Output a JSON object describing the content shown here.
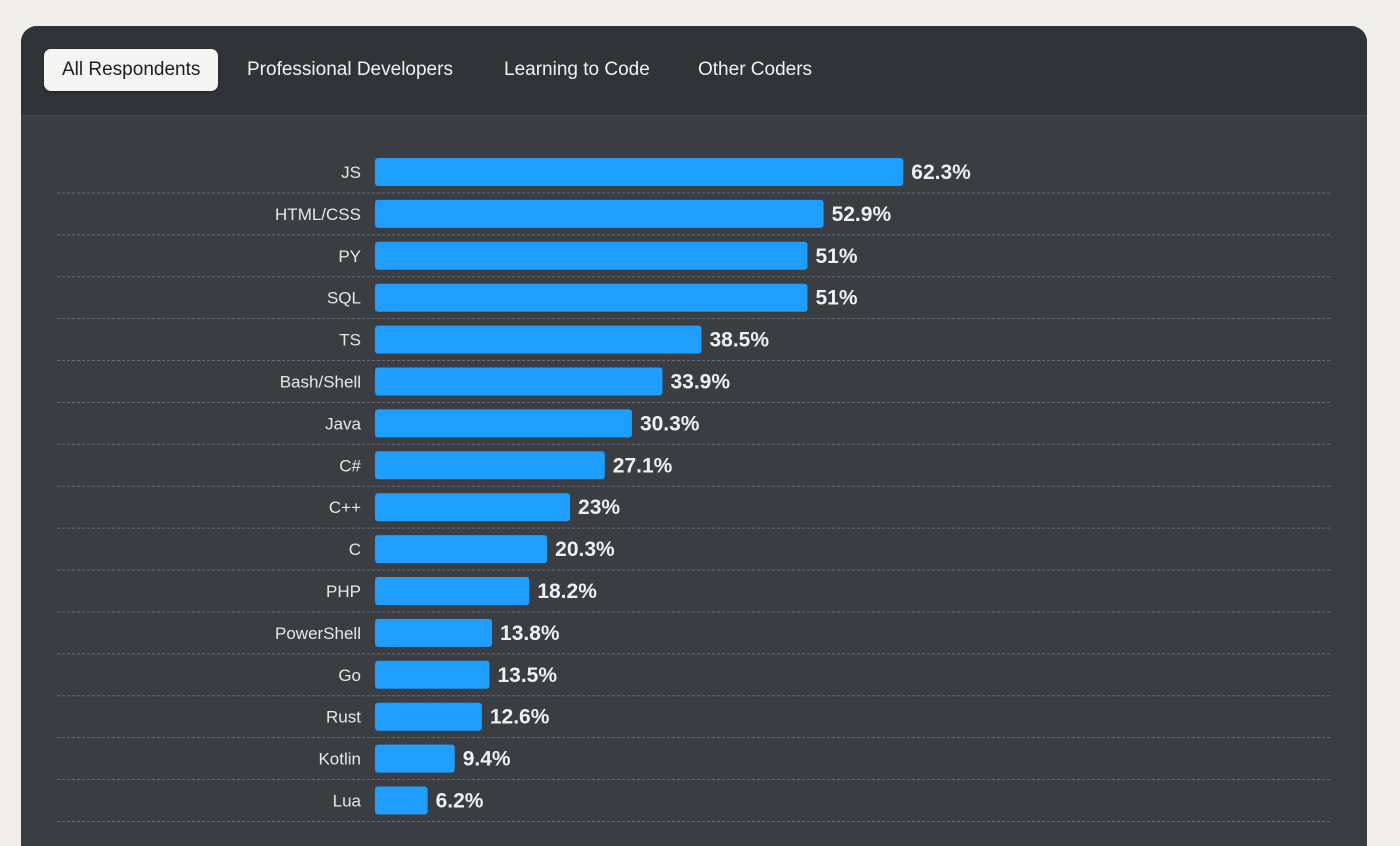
{
  "tabs": [
    {
      "label": "All Respondents",
      "active": true
    },
    {
      "label": "Professional Developers",
      "active": false
    },
    {
      "label": "Learning to Code",
      "active": false
    },
    {
      "label": "Other Coders",
      "active": false
    }
  ],
  "colors": {
    "bar": "#1f9eff",
    "panel": "#3a3e43",
    "tabbar": "#303337"
  },
  "chart_data": {
    "type": "bar",
    "orientation": "horizontal",
    "grid": true,
    "categories": [
      "JS",
      "HTML/CSS",
      "PY",
      "SQL",
      "TS",
      "Bash/Shell",
      "Java",
      "C#",
      "C++",
      "C",
      "PHP",
      "PowerShell",
      "Go",
      "Rust",
      "Kotlin",
      "Lua"
    ],
    "values": [
      62.3,
      52.9,
      51,
      51,
      38.5,
      33.9,
      30.3,
      27.1,
      23,
      20.3,
      18.2,
      13.8,
      13.5,
      12.6,
      9.4,
      6.2
    ],
    "value_labels": [
      "62.3%",
      "52.9%",
      "51%",
      "51%",
      "38.5%",
      "33.9%",
      "30.3%",
      "27.1%",
      "23%",
      "20.3%",
      "18.2%",
      "13.8%",
      "13.5%",
      "12.6%",
      "9.4%",
      "6.2%"
    ],
    "xlim": [
      0,
      100
    ]
  }
}
